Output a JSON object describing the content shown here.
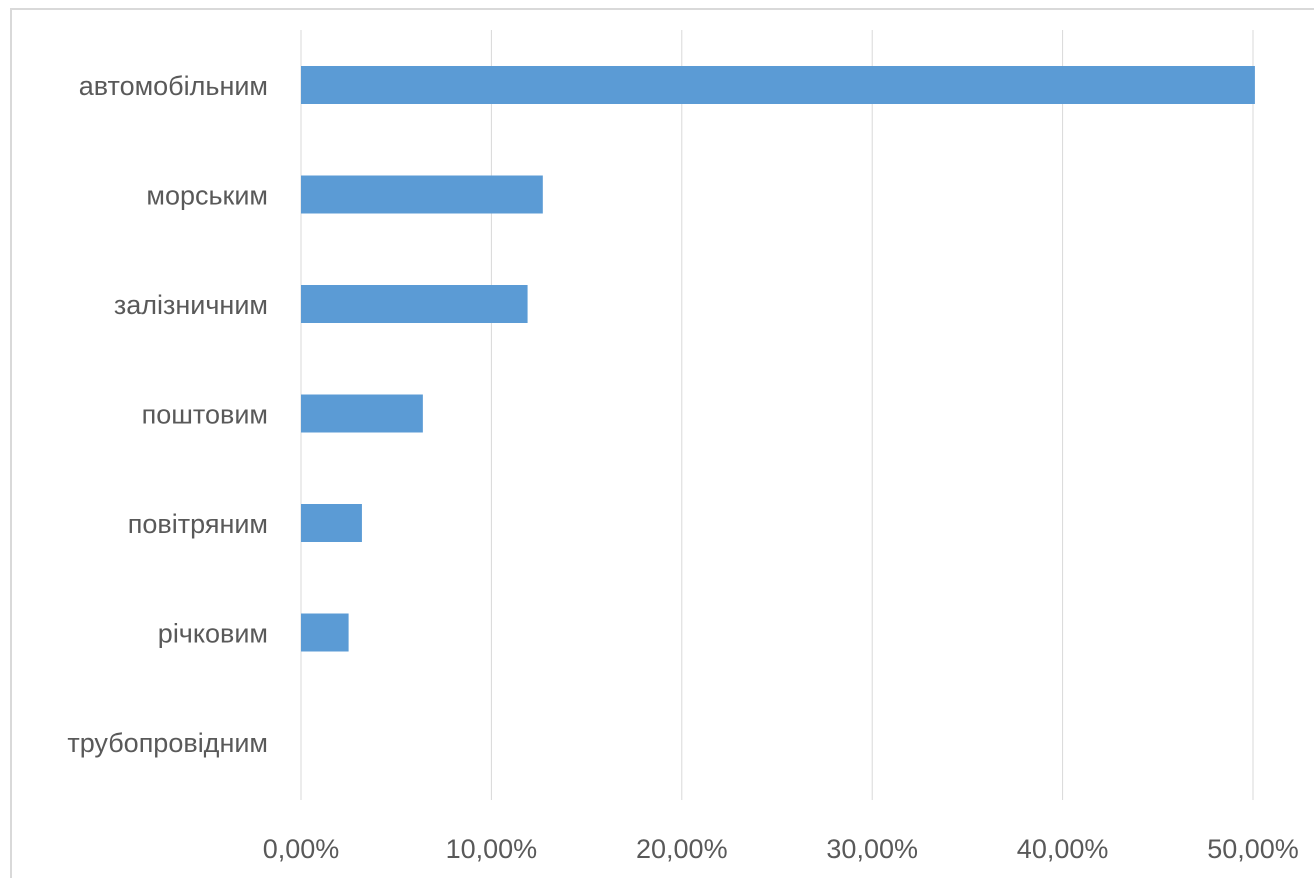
{
  "chart_data": {
    "type": "bar",
    "orientation": "horizontal",
    "categories": [
      "автомобільним",
      "морським",
      "залізничним",
      "поштовим",
      "повітряним",
      "річковим",
      "трубопровідним"
    ],
    "values": [
      50.1,
      12.7,
      11.9,
      6.4,
      3.2,
      2.5,
      0
    ],
    "xlim": [
      0,
      50
    ],
    "xticks": [
      "0,00%",
      "10,00%",
      "20,00%",
      "30,00%",
      "40,00%",
      "50,00%"
    ],
    "grid": true,
    "bar_color": "#5b9bd5",
    "gridline_color": "#d9d9d9",
    "text_color": "#595959"
  }
}
